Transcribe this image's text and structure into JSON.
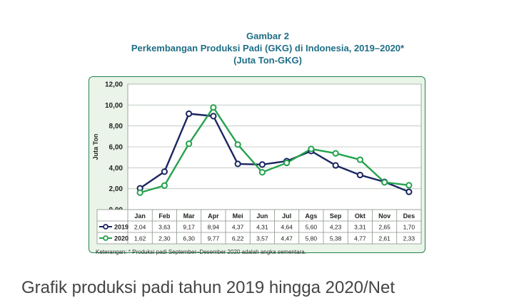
{
  "title": {
    "line1": "Gambar 2",
    "line2": "Perkembangan Produksi Padi (GKG) di Indonesia, 2019–2020*",
    "line3": "(Juta Ton-GKG)"
  },
  "footnote": "Keterangan: * Produksi padi September–Desember 2020 adalah angka sementara.",
  "caption": "Grafik produksi padi tahun 2019 hingga 2020/Net",
  "colors": {
    "series_2019": "#1b2660",
    "series_2020": "#25a24e",
    "panel_border": "#22854d",
    "grid": "#b9c3b9"
  },
  "chart_data": {
    "type": "line",
    "ylabel": "Juta Ton",
    "ylim": [
      0,
      12
    ],
    "yticks": [
      "0,00",
      "2,00",
      "4,00",
      "6,00",
      "8,00",
      "10,00",
      "12,00"
    ],
    "grid": true,
    "categories": [
      "Jan",
      "Feb",
      "Mar",
      "Apr",
      "Mei",
      "Jun",
      "Jul",
      "Ags",
      "Sep",
      "Okt",
      "Nov",
      "Des"
    ],
    "series": [
      {
        "name": "2019",
        "values": [
          2.04,
          3.63,
          9.17,
          8.94,
          4.37,
          4.31,
          4.64,
          5.6,
          4.23,
          3.31,
          2.65,
          1.7
        ],
        "labels": [
          "2,04",
          "3,63",
          "9,17",
          "8,94",
          "4,37",
          "4,31",
          "4,64",
          "5,60",
          "4,23",
          "3,31",
          "2,65",
          "1,70"
        ]
      },
      {
        "name": "2020",
        "values": [
          1.62,
          2.3,
          6.3,
          9.77,
          6.22,
          3.57,
          4.47,
          5.8,
          5.38,
          4.77,
          2.61,
          2.33
        ],
        "labels": [
          "1,62",
          "2,30",
          "6,30",
          "9,77",
          "6,22",
          "3,57",
          "4,47",
          "5,80",
          "5,38",
          "4,77",
          "2,61",
          "2,33"
        ]
      }
    ],
    "legend": "data-table-rows"
  }
}
